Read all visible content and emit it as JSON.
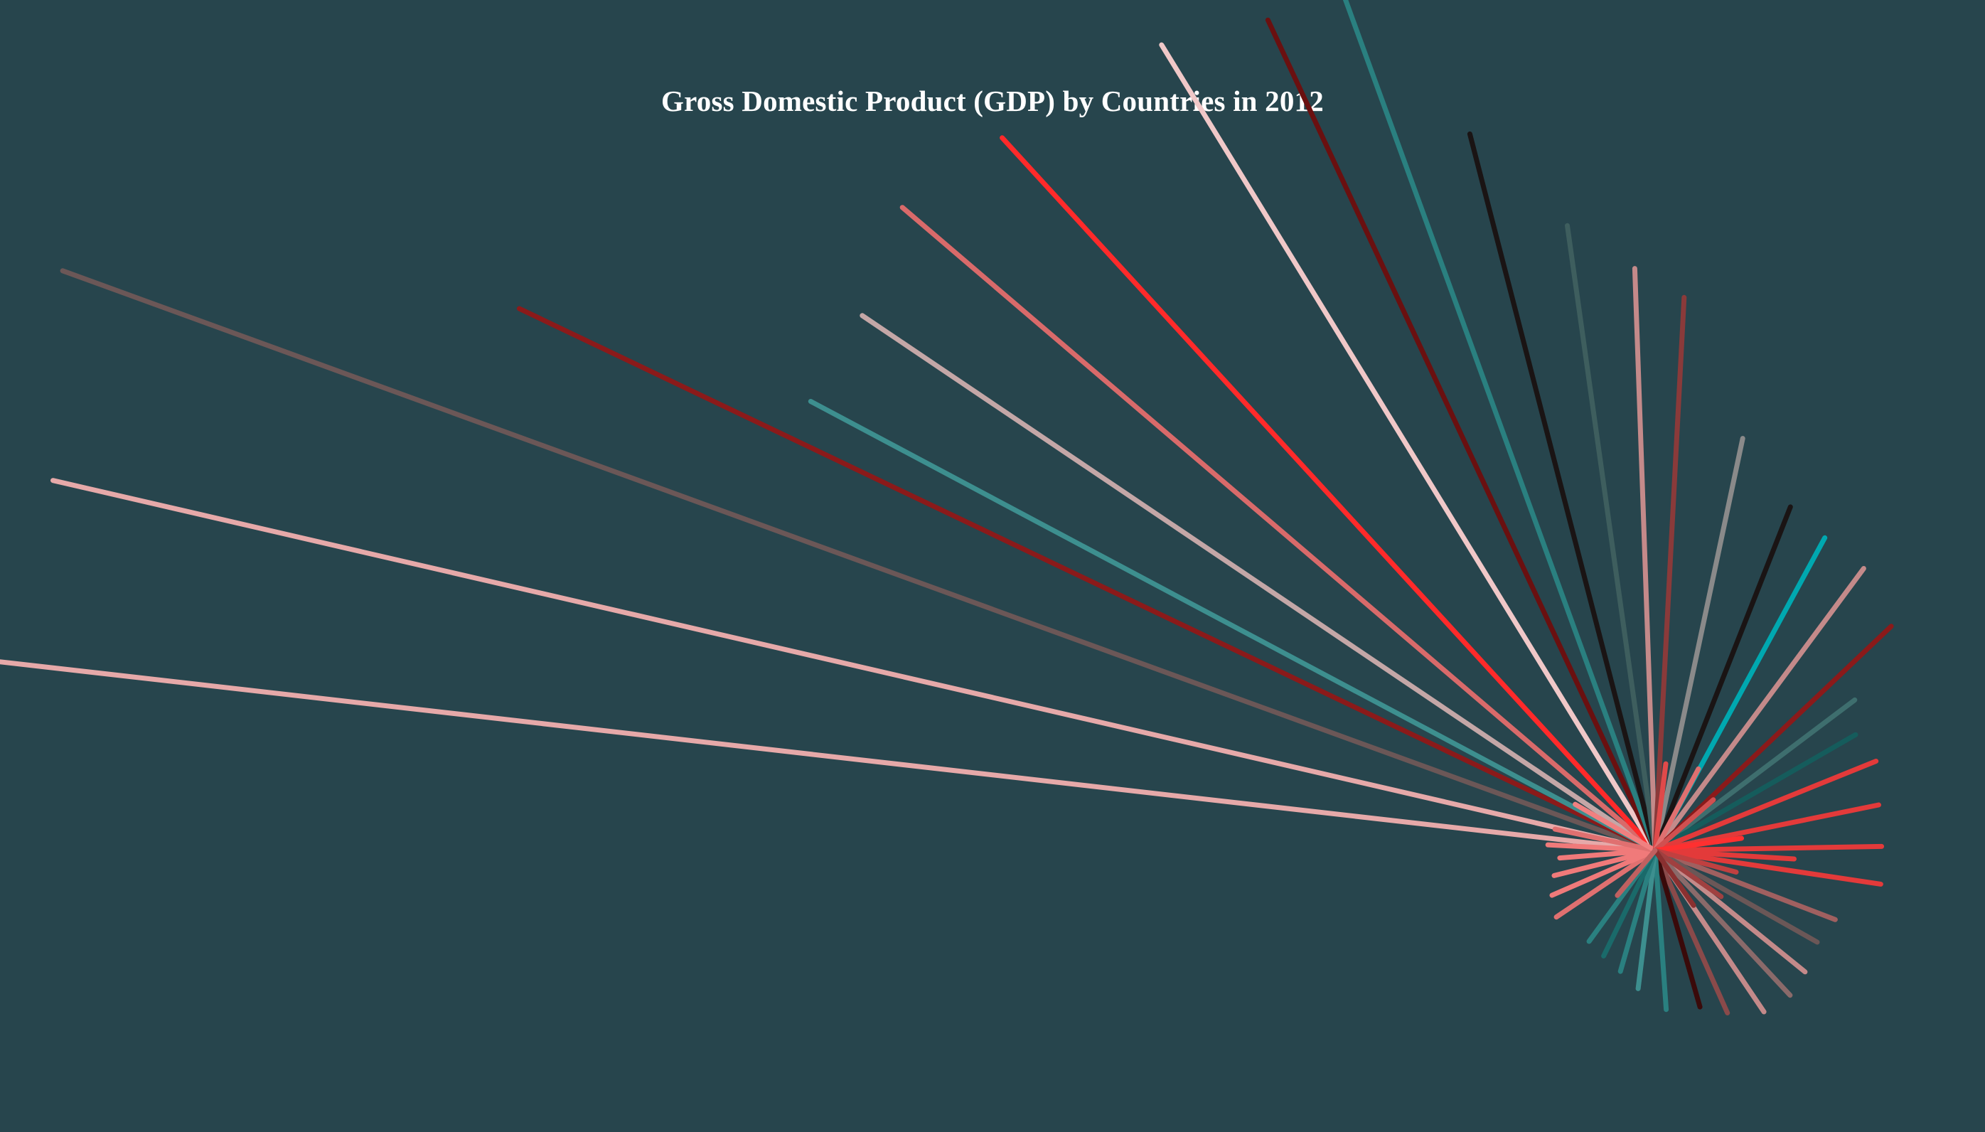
{
  "chart_data": {
    "type": "radial-burst",
    "title": "Gross Domestic Product (GDP) by Countries in 2012",
    "background": "#27454d",
    "title_color": "#ffffff",
    "palette": {
      "salmon_pink": "#e6a9a9",
      "taupe_brown": "#6b5757",
      "dark_red": "#8b1a1a",
      "teal": "#3d8f8f",
      "silver_pink": "#c4a7a7",
      "coral": "#d96a6a",
      "bright_red": "#ff2a2a",
      "light_pink": "#f0c8c8",
      "maroon": "#6a1010",
      "deep_teal": "#2a8080",
      "near_black": "#1a1414",
      "slate_teal": "#3e5e5e",
      "dusty_rose": "#c48a8a",
      "rust": "#8a3a3a",
      "grey": "#8a8a8a",
      "cyan": "#00a8b0",
      "crimson": "#e33a3a",
      "dark_teal": "#155c5c"
    },
    "note": "Each ray is one country; ray length encodes GDP (relative magnitude, unlabeled). Angles in degrees measured counterclockwise from east.",
    "series": [
      {
        "angle": 173.5,
        "value": 1.0,
        "color": "#e6a9a9"
      },
      {
        "angle": 167.0,
        "value": 0.98,
        "color": "#e6a9a9"
      },
      {
        "angle": 160.0,
        "value": 1.01,
        "color": "#6b5757"
      },
      {
        "angle": 154.5,
        "value": 0.75,
        "color": "#8b1a1a"
      },
      {
        "angle": 152.0,
        "value": 0.57,
        "color": "#3d8f8f"
      },
      {
        "angle": 146.0,
        "value": 0.57,
        "color": "#c4a7a7"
      },
      {
        "angle": 139.5,
        "value": 0.59,
        "color": "#d96a6a"
      },
      {
        "angle": 132.5,
        "value": 0.576,
        "color": "#ff2a2a"
      },
      {
        "angle": 121.5,
        "value": 0.563,
        "color": "#f0c8c8"
      },
      {
        "angle": 115.0,
        "value": 0.546,
        "color": "#6a1010"
      },
      {
        "angle": 110.0,
        "value": 0.567,
        "color": "#2a8080"
      },
      {
        "angle": 104.5,
        "value": 0.441,
        "color": "#1a1414"
      },
      {
        "angle": 98.0,
        "value": 0.376,
        "color": "#3e5e5e"
      },
      {
        "angle": 92.0,
        "value": 0.347,
        "color": "#c48a8a"
      },
      {
        "angle": 87.0,
        "value": 0.33,
        "color": "#8a3a3a"
      },
      {
        "angle": 78.0,
        "value": 0.251,
        "color": "#8a8a8a"
      },
      {
        "angle": 68.5,
        "value": 0.22,
        "color": "#1a1414"
      },
      {
        "angle": 61.5,
        "value": 0.212,
        "color": "#00a8b0"
      },
      {
        "angle": 53.5,
        "value": 0.209,
        "color": "#c48a8a"
      },
      {
        "angle": 43.5,
        "value": 0.194,
        "color": "#8b1a1a"
      },
      {
        "angle": 37.0,
        "value": 0.149,
        "color": "#3e6e6e"
      },
      {
        "angle": 30.0,
        "value": 0.138,
        "color": "#155c5c"
      },
      {
        "angle": 22.0,
        "value": 0.142,
        "color": "#e33a3a"
      },
      {
        "angle": 11.5,
        "value": 0.136,
        "color": "#e33a3a"
      },
      {
        "angle": 1.0,
        "value": 0.135,
        "color": "#e33a3a"
      },
      {
        "angle": -3.5,
        "value": 0.083,
        "color": "#e33a3a"
      },
      {
        "angle": -8.5,
        "value": 0.136,
        "color": "#e33a3a"
      },
      {
        "angle": -21.0,
        "value": 0.115,
        "color": "#a06060"
      },
      {
        "angle": -29.5,
        "value": 0.111,
        "color": "#6b5757"
      },
      {
        "angle": -39.0,
        "value": 0.115,
        "color": "#c48a8a"
      },
      {
        "angle": -47.0,
        "value": 0.118,
        "color": "#8a6a6a"
      },
      {
        "angle": -56.0,
        "value": 0.116,
        "color": "#c48a8a"
      },
      {
        "angle": -66.0,
        "value": 0.106,
        "color": "#8a4a4a"
      },
      {
        "angle": -74.0,
        "value": 0.097,
        "color": "#3a0a0a"
      },
      {
        "angle": -86.0,
        "value": 0.095,
        "color": "#2a8080"
      },
      {
        "angle": -97.0,
        "value": 0.083,
        "color": "#3d8f8f"
      },
      {
        "angle": -106.0,
        "value": 0.075,
        "color": "#2a8080"
      },
      {
        "angle": -116.0,
        "value": 0.07,
        "color": "#1a6a6a"
      },
      {
        "angle": -126.0,
        "value": 0.067,
        "color": "#2a8080"
      },
      {
        "angle": -146.0,
        "value": 0.071,
        "color": "#e07070"
      },
      {
        "angle": -156.5,
        "value": 0.067,
        "color": "#f07a7a"
      },
      {
        "angle": -166.0,
        "value": 0.062,
        "color": "#f07a7a"
      },
      {
        "angle": -175.5,
        "value": 0.057,
        "color": "#f07a7a"
      },
      {
        "angle": 177.0,
        "value": 0.064,
        "color": "#f07a7a"
      },
      {
        "angle": 168.0,
        "value": 0.061,
        "color": "#e07070"
      },
      {
        "angle": 150.0,
        "value": 0.055,
        "color": "#f08080"
      },
      {
        "angle": 83.0,
        "value": 0.052,
        "color": "#e04a4a"
      },
      {
        "angle": 62.0,
        "value": 0.055,
        "color": "#e07070"
      },
      {
        "angle": 41.0,
        "value": 0.046,
        "color": "#d05050"
      },
      {
        "angle": 8.0,
        "value": 0.052,
        "color": "#ff3030"
      },
      {
        "angle": -15.0,
        "value": 0.05,
        "color": "#c04040"
      },
      {
        "angle": -35.0,
        "value": 0.048,
        "color": "#a04040"
      },
      {
        "angle": -55.0,
        "value": 0.04,
        "color": "#8a3030"
      },
      {
        "angle": -130.0,
        "value": 0.035,
        "color": "#c06060"
      }
    ]
  }
}
